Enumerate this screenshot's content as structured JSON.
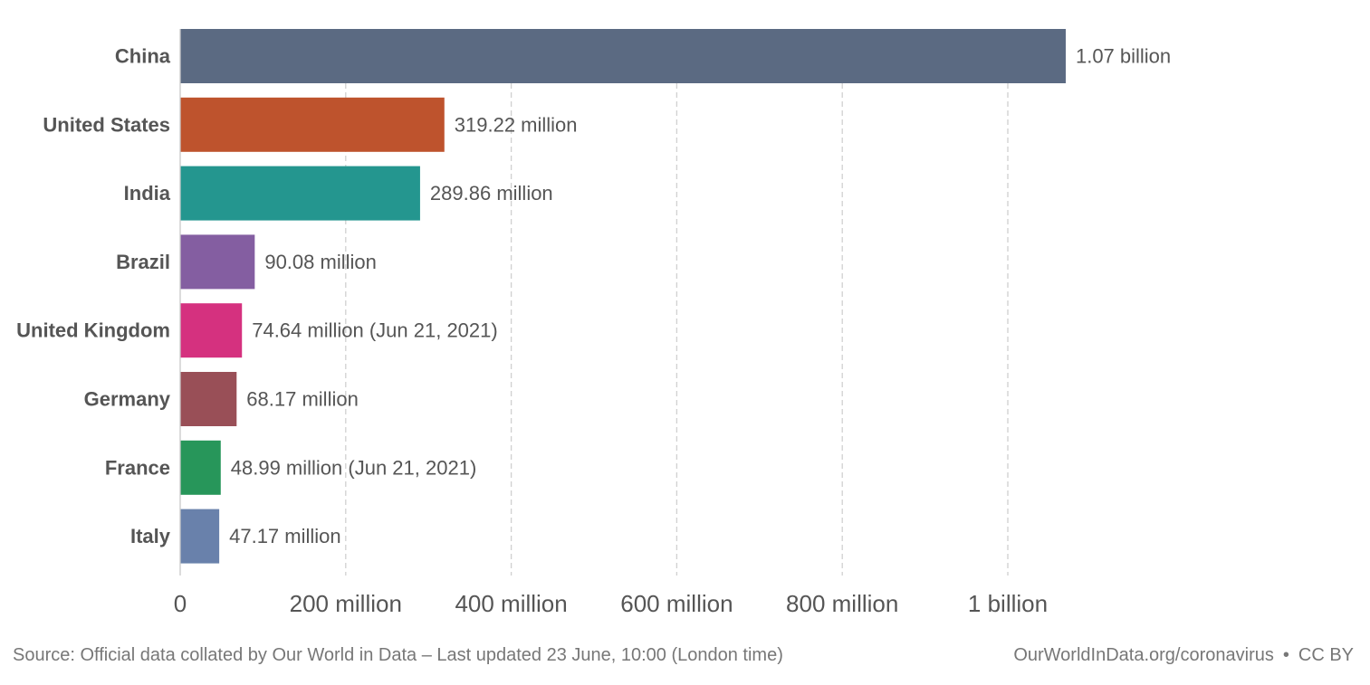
{
  "chart_data": {
    "type": "bar",
    "orientation": "horizontal",
    "categories": [
      "China",
      "United States",
      "India",
      "Brazil",
      "United Kingdom",
      "Germany",
      "France",
      "Italy"
    ],
    "values": [
      1070000000,
      319220000,
      289860000,
      90080000,
      74640000,
      68170000,
      48990000,
      47170000
    ],
    "value_labels": [
      "1.07 billion",
      "319.22 million",
      "289.86 million",
      "90.08 million",
      "74.64 million (Jun 21, 2021)",
      "68.17 million",
      "48.99 million (Jun 21, 2021)",
      "47.17 million"
    ],
    "colors": [
      "#5b6a82",
      "#be532d",
      "#24968f",
      "#845ea1",
      "#d5317f",
      "#994f57",
      "#27965a",
      "#6981ab"
    ],
    "xlim": [
      0,
      1200000000
    ],
    "xticks": [
      0,
      200000000,
      400000000,
      600000000,
      800000000,
      1000000000
    ],
    "xtick_labels": [
      "0",
      "200 million",
      "400 million",
      "600 million",
      "800 million",
      "1 billion"
    ],
    "grid": true
  },
  "footer": {
    "source": "Source: Official data collated by Our World in Data – Last updated 23 June, 10:00 (London time)",
    "link": "OurWorldInData.org/coronavirus",
    "license": "CC BY"
  }
}
